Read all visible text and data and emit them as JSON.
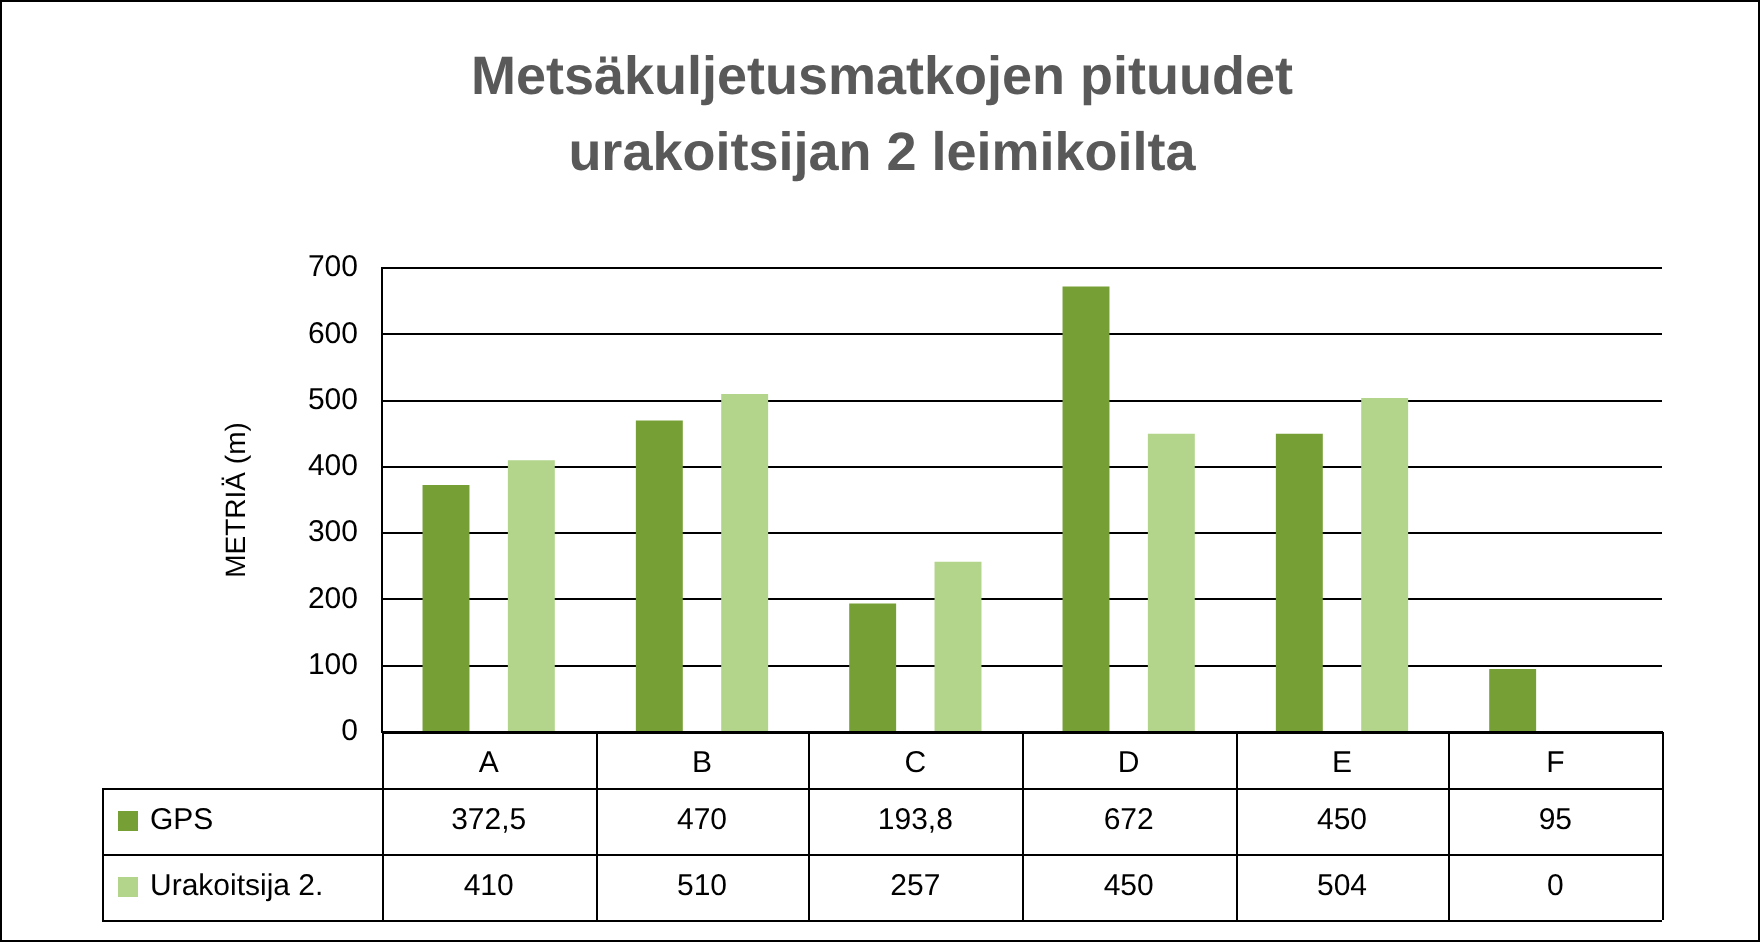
{
  "chart_data": {
    "type": "bar",
    "title": "Metsäkuljetusmatkojen pituudet urakoitsijan 2 leimikoilta",
    "ylabel": "METRIÄ (m)",
    "categories": [
      "A",
      "B",
      "C",
      "D",
      "E",
      "F"
    ],
    "series": [
      {
        "name": "GPS",
        "color": "#76a035",
        "values": [
          372.5,
          470,
          193.8,
          672,
          450,
          95
        ],
        "value_labels": [
          "372,5",
          "470",
          "193,8",
          "672",
          "450",
          "95"
        ]
      },
      {
        "name": "Urakoitsija 2.",
        "color": "#b2d58b",
        "values": [
          410,
          510,
          257,
          450,
          504,
          0
        ],
        "value_labels": [
          "410",
          "510",
          "257",
          "450",
          "504",
          "0"
        ]
      }
    ],
    "ylim": [
      0,
      700
    ],
    "yticks": [
      0,
      100,
      200,
      300,
      400,
      500,
      600,
      700
    ],
    "grid": "y",
    "legend": "bottom"
  }
}
